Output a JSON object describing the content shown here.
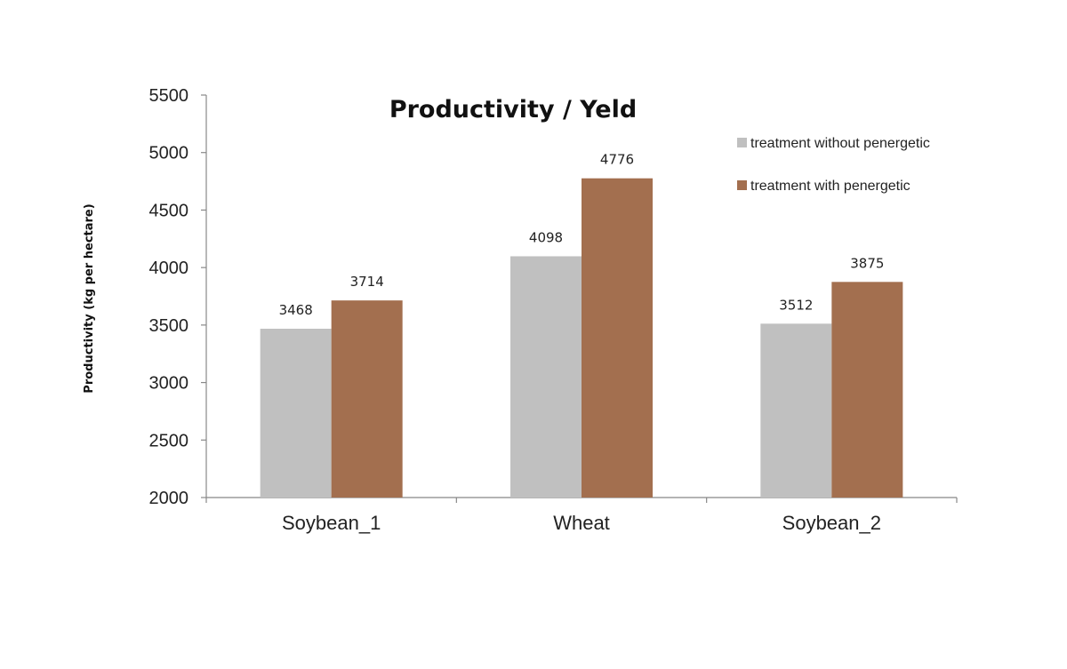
{
  "chart_data": {
    "type": "bar",
    "title": "Productivity / Yeld",
    "ylabel": "Productivity (kg per hectare)",
    "xlabel": "",
    "categories": [
      "Soybean_1",
      "Wheat",
      "Soybean_2"
    ],
    "ylim": [
      2000,
      5500
    ],
    "yticks": [
      2000,
      2500,
      3000,
      3500,
      4000,
      4500,
      5000,
      5500
    ],
    "legend_position": "top-right",
    "grid": false,
    "series": [
      {
        "name": "treatment without penergetic",
        "color": "#c0c0c0",
        "values": [
          3468,
          4098,
          3512
        ]
      },
      {
        "name": "treatment with penergetic",
        "color": "#a36f4f",
        "values": [
          3714,
          4776,
          3875
        ]
      }
    ]
  }
}
